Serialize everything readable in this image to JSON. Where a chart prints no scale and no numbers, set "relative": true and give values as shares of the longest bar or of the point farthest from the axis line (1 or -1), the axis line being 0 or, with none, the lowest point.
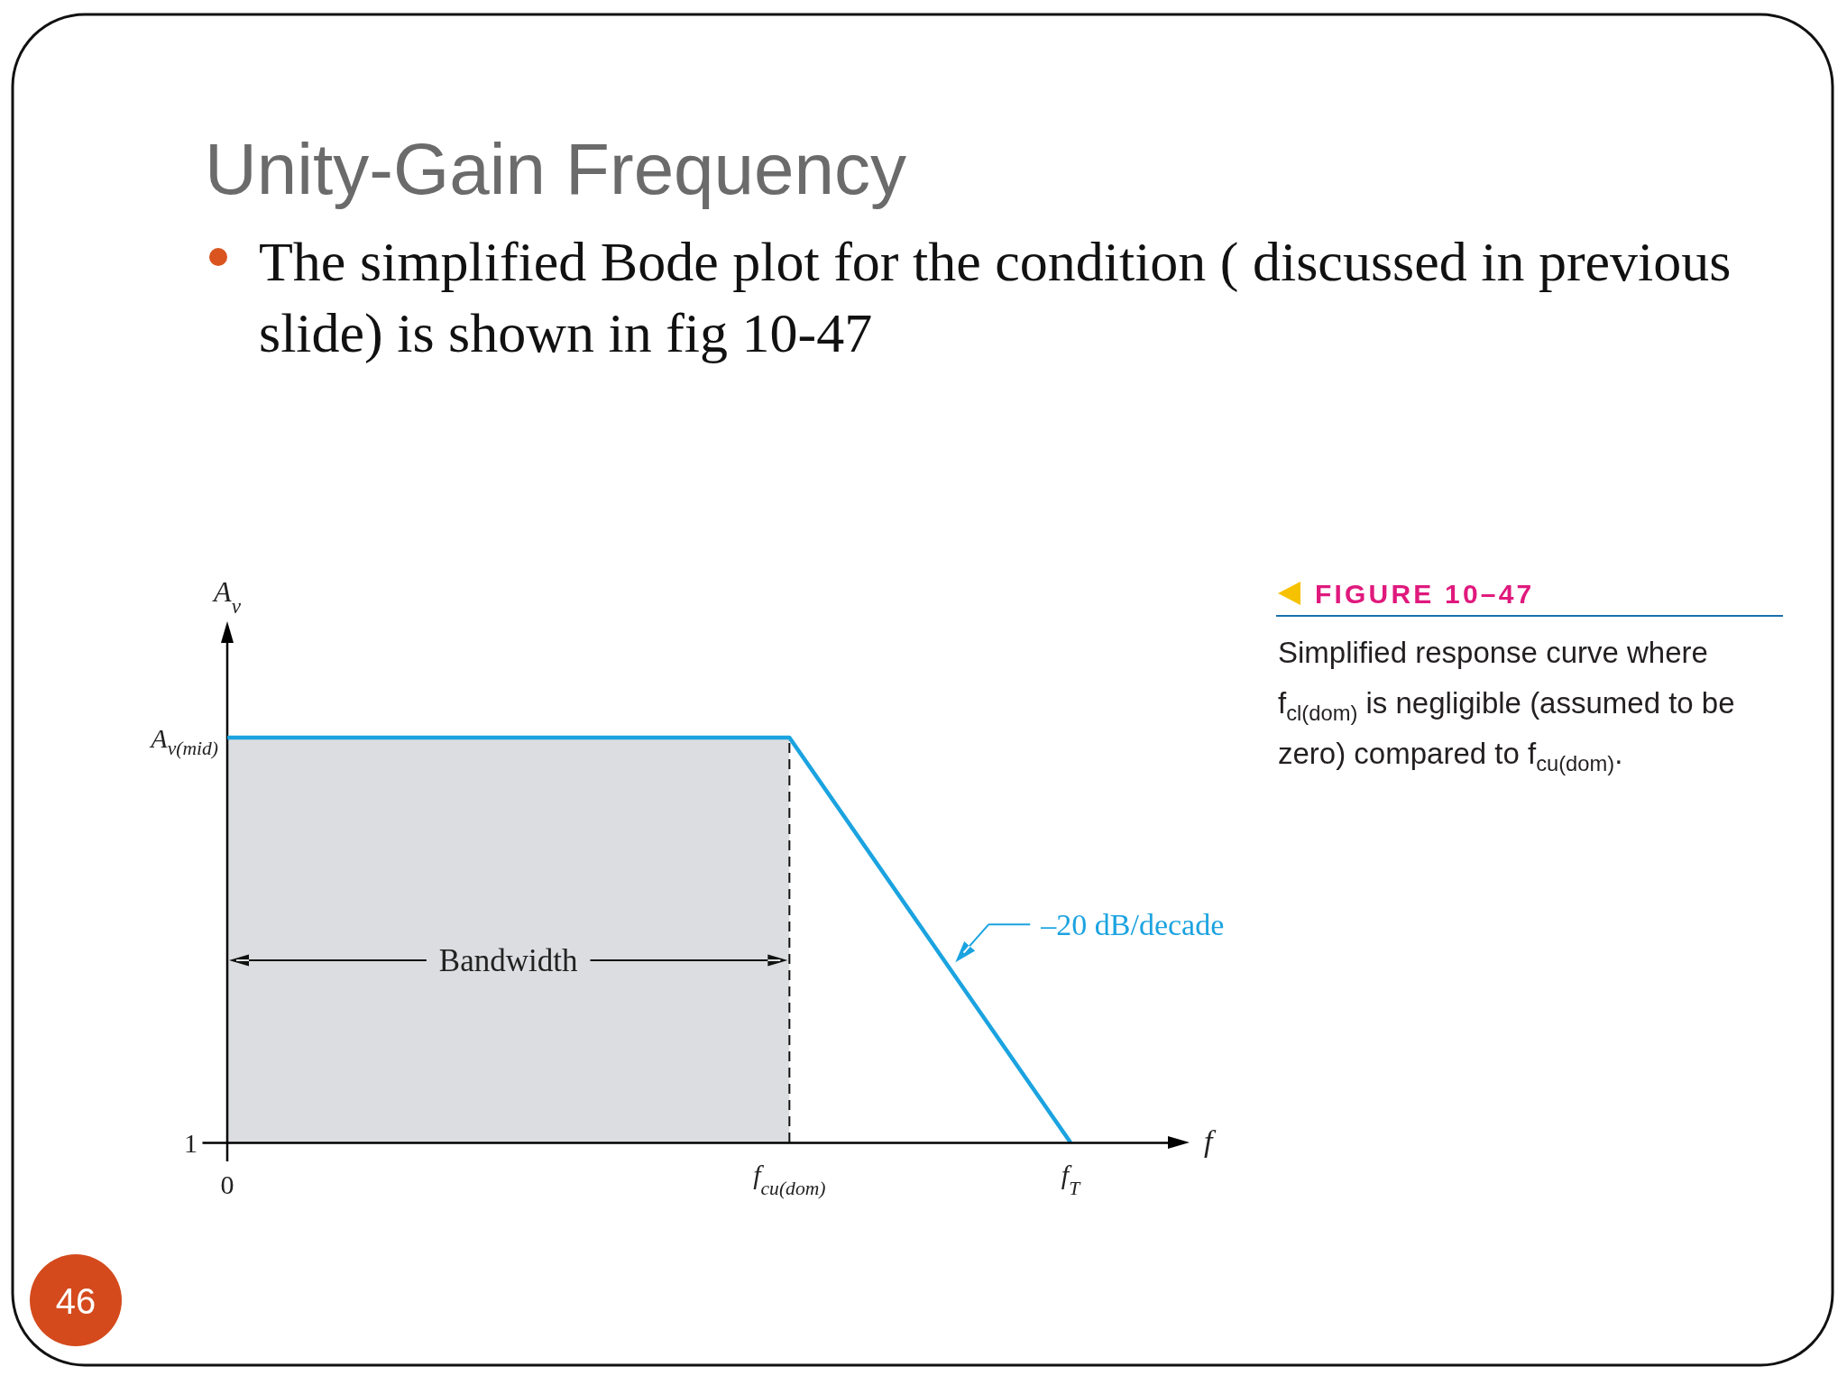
{
  "chart_data": {
    "type": "line",
    "relative": true,
    "title": "Unity-Gain Frequency",
    "subtitle": "The simplified Bode plot for the condition ( discussed in previous slide) is shown in fig 10-47",
    "xlabel": "f",
    "ylabel": "A$_{v}$",
    "categories": [
      "0",
      null,
      "f$_{cu(dom)}$",
      "f$_{T}$"
    ],
    "series": [
      {
        "color": "#1ba3e0",
        "values": [
          1,
          1,
          1,
          0
        ]
      }
    ],
    "bands": [
      {
        "axis": "x",
        "from": "0",
        "to": "f$_{cu(dom)}$",
        "label": "Bandwidth",
        "color": "#dcdde0"
      }
    ],
    "ref_lines": [
      {
        "axis": "x",
        "value": "0",
        "color": "#000000"
      },
      {
        "axis": "x",
        "value": "f$_{cu(dom)}$",
        "color": "#111111",
        "line_style": "dashed"
      }
    ],
    "annotations": [
      "A$_{v(mid)}$",
      "1",
      "–20 dB/decade",
      "FIGURE 10–47",
      "Simplified response curve where f$_{cl(dom)}$ is negligible (assumed to be zero) compared to f$_{cu(dom)}$.",
      "46"
    ]
  }
}
